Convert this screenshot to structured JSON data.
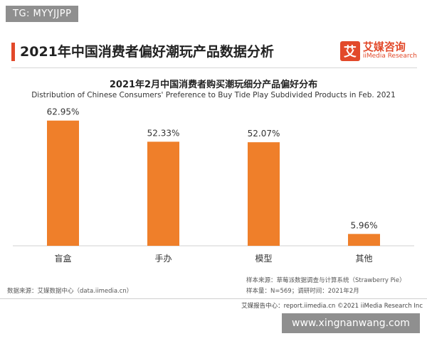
{
  "tag": "TG: MYYJJPP",
  "header": {
    "title": "2021年中国消费者偏好潮玩产品数据分析",
    "brand_logo": "艾",
    "brand_cn": "艾媒咨询",
    "brand_en": "iiMedia Research"
  },
  "chart_data": {
    "type": "bar",
    "title": "2021年2月中国消费者购买潮玩细分产品偏好分布",
    "subtitle": "Distribution of Chinese Consumers' Preference to Buy Tide Play Subdivided Products in Feb. 2021",
    "categories": [
      "盲盒",
      "手办",
      "模型",
      "其他"
    ],
    "values": [
      62.95,
      52.33,
      52.07,
      5.96
    ],
    "value_labels": [
      "62.95%",
      "52.33%",
      "52.07%",
      "5.96%"
    ],
    "ylim": [
      0,
      70
    ],
    "grid": false,
    "bar_color": "#ef7f2a"
  },
  "notes": {
    "sample_source": "样本来源：草莓派数据调查与计算系统（Strawberry Pie）",
    "sample_info": "样本量：N=569；调研时间：2021年2月",
    "data_source": "数据来源：艾媒数据中心（data.iimedia.cn）"
  },
  "footer": "艾媒报告中心：report.iimedia.cn ©2021 iiMedia Research Inc",
  "watermark": "www.xingnanwang.com"
}
